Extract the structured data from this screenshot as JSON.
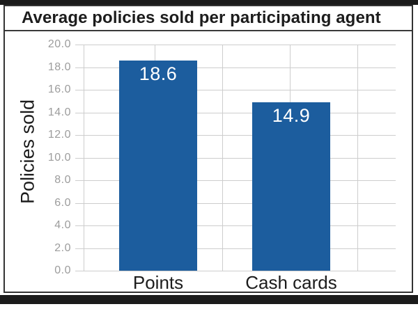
{
  "chart_data": {
    "type": "bar",
    "title": "Average policies sold per participating agent",
    "categories": [
      "Points",
      "Cash cards"
    ],
    "values": [
      18.6,
      14.9
    ],
    "data_labels": [
      "18.6",
      "14.9"
    ],
    "xlabel": "",
    "ylabel": "Policies sold",
    "ylim": [
      0,
      20
    ],
    "ytick_step": 2,
    "ytick_labels": [
      "20.0",
      "18.0",
      "16.0",
      "14.0",
      "12.0",
      "10.0",
      "8.0",
      "6.0",
      "4.0",
      "2.0",
      "0.0"
    ],
    "grid": true,
    "legend": "none",
    "bar_color": "#1c5d9e",
    "data_label_color": "#ffffff",
    "grid_color": "#cdcdcd",
    "tick_text_color": "#9c9c9c",
    "text_color": "#1c1c1c",
    "frame_color": "#1b1b1b"
  }
}
